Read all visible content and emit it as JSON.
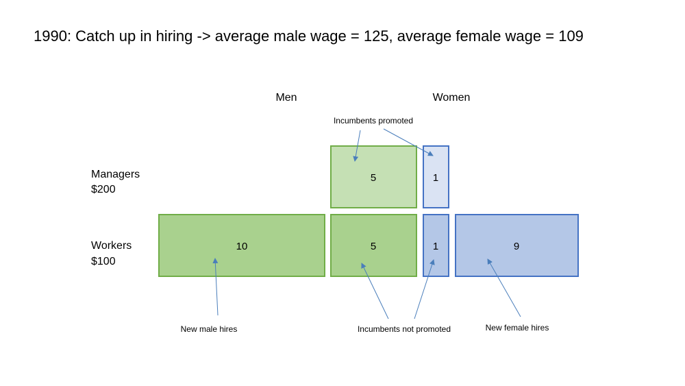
{
  "title": "1990: Catch up in hiring -> average male wage = 125, average female wage = 109",
  "columns": {
    "men": "Men",
    "women": "Women"
  },
  "rows": {
    "managers": {
      "label": "Managers",
      "wage": "$200"
    },
    "workers": {
      "label": "Workers",
      "wage": "$100"
    }
  },
  "boxes": {
    "men_new_hires": "10",
    "men_incumbent_workers": "5",
    "men_managers": "5",
    "women_managers": "1",
    "women_incumbent_workers": "1",
    "women_new_hires": "9"
  },
  "annotations": {
    "incumbents_promoted": "Incumbents promoted",
    "new_male_hires": "New male hires",
    "incumbents_not_promoted": "Incumbents not promoted",
    "new_female_hires": "New female hires"
  },
  "colors": {
    "green_stroke": "#70ad47",
    "green_light": "#c5e0b4",
    "green": "#a9d18e",
    "blue_stroke": "#4472c4",
    "blue_light": "#dae3f3",
    "blue": "#b4c7e7",
    "arrow": "#4a7ebb"
  }
}
